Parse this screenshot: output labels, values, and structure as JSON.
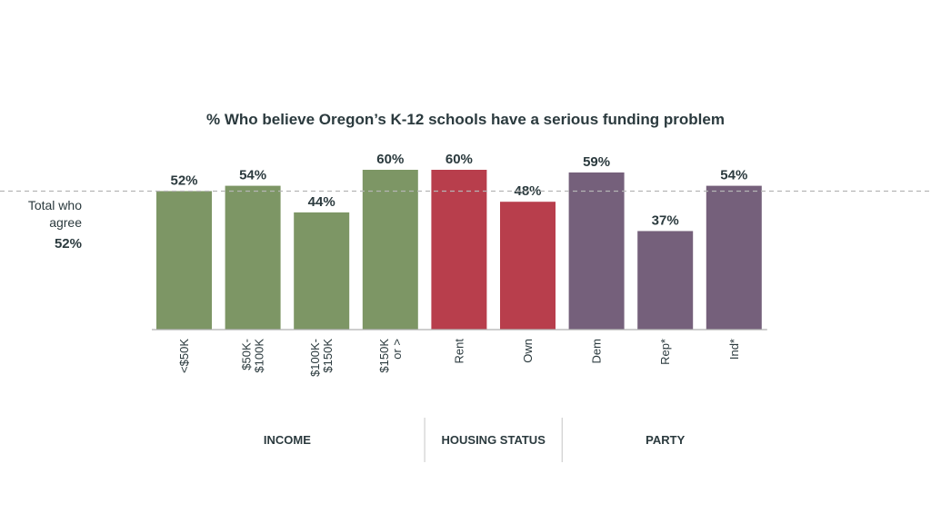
{
  "chart_data": {
    "type": "bar",
    "title": "% Who believe Oregon’s K-12 schools have a serious funding problem",
    "categories": [
      [
        "<$50K"
      ],
      [
        "$50K-",
        "$100K"
      ],
      [
        "$100K-",
        "$150K"
      ],
      [
        "$150K",
        "or >"
      ],
      [
        "Rent"
      ],
      [
        "Own"
      ],
      [
        "Dem"
      ],
      [
        "Rep*"
      ],
      [
        "Ind*"
      ]
    ],
    "values": [
      52,
      54,
      44,
      60,
      60,
      48,
      59,
      37,
      54
    ],
    "value_labels": [
      "52%",
      "54%",
      "44%",
      "60%",
      "60%",
      "48%",
      "59%",
      "37%",
      "54%"
    ],
    "groups": [
      {
        "name": "INCOME",
        "count": 4,
        "color": "#7d9665"
      },
      {
        "name": "HOUSING STATUS",
        "count": 2,
        "color": "#b83e4c"
      },
      {
        "name": "PARTY",
        "count": 3,
        "color": "#75607b"
      }
    ],
    "reference_line": {
      "label": [
        "Total who",
        "agree"
      ],
      "value": 52,
      "value_label": "52%"
    },
    "ylim": [
      0,
      60
    ],
    "grid": false,
    "xlabel": "",
    "ylabel": ""
  }
}
